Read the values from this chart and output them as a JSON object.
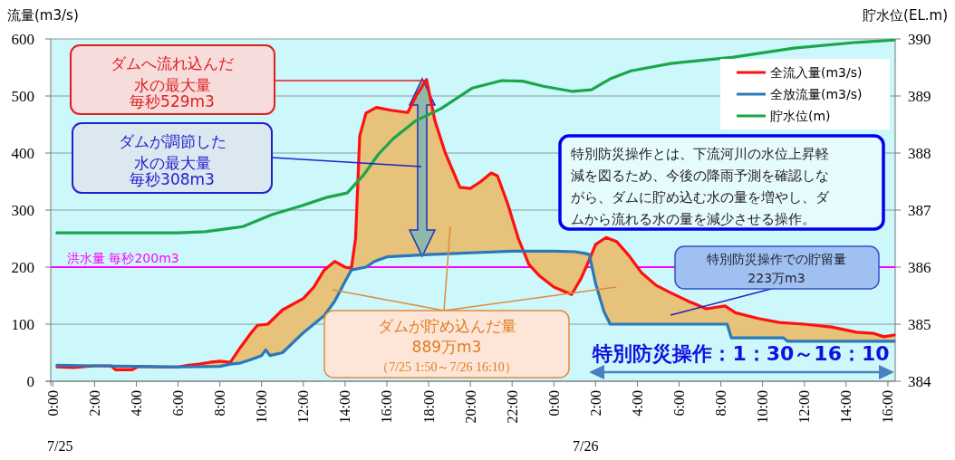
{
  "chart_data": {
    "type": "line",
    "ylabel": "流量(m3/s)",
    "y2label": "貯水位(EL.m)",
    "xlim": [
      "--07-24T23:54",
      "--07-26T16:21"
    ],
    "xticks": [
      {
        "value": "--07-25T00:00",
        "label": "0:00"
      },
      {
        "value": "--07-25T02:00",
        "label": "2:00"
      },
      {
        "value": "--07-25T04:00",
        "label": "4:00"
      },
      {
        "value": "--07-25T06:00",
        "label": "6:00"
      },
      {
        "value": "--07-25T08:00",
        "label": "8:00"
      },
      {
        "value": "--07-25T10:00",
        "label": "10:00"
      },
      {
        "value": "--07-25T12:00",
        "label": "12:00"
      },
      {
        "value": "--07-25T14:00",
        "label": "14:00"
      },
      {
        "value": "--07-25T16:00",
        "label": "16:00"
      },
      {
        "value": "--07-25T18:00",
        "label": "18:00"
      },
      {
        "value": "--07-25T20:00",
        "label": "20:00"
      },
      {
        "value": "--07-25T22:00",
        "label": "22:00"
      },
      {
        "value": "--07-26T00:00",
        "label": "0:00"
      },
      {
        "value": "--07-26T02:00",
        "label": "2:00"
      },
      {
        "value": "--07-26T04:00",
        "label": "4:00"
      },
      {
        "value": "--07-26T06:00",
        "label": "6:00"
      },
      {
        "value": "--07-26T08:00",
        "label": "8:00"
      },
      {
        "value": "--07-26T10:00",
        "label": "10:00"
      },
      {
        "value": "--07-26T12:00",
        "label": "12:00"
      },
      {
        "value": "--07-26T14:00",
        "label": "14:00"
      },
      {
        "value": "--07-26T16:00",
        "label": "16:00"
      }
    ],
    "ylim": [
      0,
      600
    ],
    "yticks": [
      0,
      100,
      200,
      300,
      400,
      500,
      600
    ],
    "y2lim": [
      384,
      390
    ],
    "y2ticks": [
      384,
      385,
      386,
      387,
      388,
      389,
      390
    ],
    "grid": "y",
    "legend": "top right",
    "marker": "none",
    "line_style": "solid",
    "series": [
      {
        "name": "全流入量(m3/s)",
        "color": "#ff1010",
        "x": [
          "--07-25T00:12",
          "--07-25T01:00",
          "--07-25T02:00",
          "--07-25T02:48",
          "--07-25T03:00",
          "--07-25T03:48",
          "--07-25T04:06",
          "--07-25T05:00",
          "--07-25T06:00",
          "--07-25T06:30",
          "--07-25T07:00",
          "--07-25T07:30",
          "--07-25T08:00",
          "--07-25T08:30",
          "--07-25T09:00",
          "--07-25T09:30",
          "--07-25T09:48",
          "--07-25T10:18",
          "--07-25T11:00",
          "--07-25T12:00",
          "--07-25T12:30",
          "--07-25T13:00",
          "--07-25T13:30",
          "--07-25T14:00",
          "--07-25T14:18",
          "--07-25T14:30",
          "--07-25T14:42",
          "--07-25T15:00",
          "--07-25T15:30",
          "--07-25T16:12",
          "--07-25T17:00",
          "--07-25T17:24",
          "--07-25T17:54",
          "--07-25T18:18",
          "--07-25T18:48",
          "--07-25T19:30",
          "--07-25T20:00",
          "--07-25T20:30",
          "--07-25T21:00",
          "--07-25T21:18",
          "--07-25T21:48",
          "--07-25T22:18",
          "--07-25T22:48",
          "--07-25T23:18",
          "--07-26T00:00",
          "--07-26T00:51",
          "--07-26T01:18",
          "--07-26T01:42",
          "--07-26T02:00",
          "--07-26T02:30",
          "--07-26T03:00",
          "--07-26T03:36",
          "--07-26T04:12",
          "--07-26T04:54",
          "--07-26T05:36",
          "--07-26T06:24",
          "--07-26T07:18",
          "--07-26T08:12",
          "--07-26T08:42",
          "--07-26T09:48",
          "--07-26T10:48",
          "--07-26T12:00",
          "--07-26T13:18",
          "--07-26T14:30",
          "--07-26T15:18",
          "--07-26T15:48",
          "--07-26T16:18"
        ],
        "values": [
          25,
          24,
          27,
          27,
          20,
          20,
          26,
          25,
          25,
          28,
          30,
          33,
          35,
          33,
          60,
          85,
          98,
          100,
          125,
          145,
          165,
          195,
          210,
          200,
          198,
          250,
          430,
          470,
          480,
          475,
          471,
          500,
          529,
          457,
          400,
          340,
          338,
          350,
          365,
          360,
          310,
          250,
          205,
          185,
          165,
          152,
          180,
          213,
          240,
          252,
          245,
          220,
          190,
          168,
          155,
          141,
          127,
          132,
          120,
          110,
          103,
          100,
          95,
          86,
          84,
          78,
          81
        ]
      },
      {
        "name": "全放流量(m3/s)",
        "color": "#2a78b8",
        "x": [
          "--07-25T00:12",
          "--07-25T02:00",
          "--07-25T04:00",
          "--07-25T06:00",
          "--07-25T08:00",
          "--07-25T08:30",
          "--07-25T09:00",
          "--07-25T09:30",
          "--07-25T10:00",
          "--07-25T10:12",
          "--07-25T10:24",
          "--07-25T11:00",
          "--07-25T12:00",
          "--07-25T13:00",
          "--07-25T13:30",
          "--07-25T14:00",
          "--07-25T14:18",
          "--07-25T15:00",
          "--07-25T15:24",
          "--07-25T16:00",
          "--07-25T18:00",
          "--07-25T20:00",
          "--07-25T22:00",
          "--07-26T00:00",
          "--07-26T01:00",
          "--07-26T01:30",
          "--07-26T01:42",
          "--07-26T02:00",
          "--07-26T02:24",
          "--07-26T02:42",
          "--07-26T08:18",
          "--07-26T08:30",
          "--07-26T11:00",
          "--07-26T11:12",
          "--07-26T16:18"
        ],
        "values": [
          28,
          27,
          26,
          25,
          26,
          30,
          32,
          38,
          45,
          55,
          45,
          50,
          85,
          115,
          140,
          175,
          195,
          200,
          210,
          218,
          222,
          225,
          228,
          228,
          227,
          224,
          222,
          171,
          122,
          100,
          100,
          76,
          76,
          70,
          70
        ]
      },
      {
        "name": "貯水位(m)",
        "color": "#1aa64a",
        "axis": "y2",
        "x": [
          "--07-25T00:12",
          "--07-25T06:00",
          "--07-25T07:18",
          "--07-25T08:30",
          "--07-25T09:06",
          "--07-25T10:30",
          "--07-25T11:57",
          "--07-25T13:06",
          "--07-25T14:06",
          "--07-25T14:54",
          "--07-25T15:36",
          "--07-25T16:18",
          "--07-25T17:24",
          "--07-25T18:36",
          "--07-25T20:06",
          "--07-25T21:30",
          "--07-25T22:30",
          "--07-25T23:30",
          "--07-26T00:54",
          "--07-26T01:48",
          "--07-26T02:42",
          "--07-26T03:42",
          "--07-26T05:36",
          "--07-26T08:36",
          "--07-26T11:30",
          "--07-26T14:30",
          "--07-26T16:18"
        ],
        "values": [
          386.6,
          386.6,
          386.62,
          386.68,
          386.71,
          386.92,
          387.08,
          387.22,
          387.3,
          387.62,
          387.98,
          388.25,
          388.57,
          388.78,
          389.14,
          389.27,
          389.26,
          389.17,
          389.08,
          389.11,
          389.3,
          389.44,
          389.57,
          389.68,
          389.84,
          389.94,
          389.98
        ]
      }
    ],
    "ref_lines": [
      {
        "axis": "y",
        "value": 200,
        "label": "洪水量 毎秒200m3",
        "color": "#ff00ff"
      }
    ],
    "annotations": [
      "ダムへ流れ込んだ水の最大量",
      "毎秒529m3",
      "ダムが調節した水の最大量",
      "毎秒308m3",
      "ダムが貯め込んだ量",
      "889万m3",
      "（7/25 1:50～7/26 16:10）",
      "特別防災操作とは、下流河川の水位上昇軽減を図るため、今後の降雨予測を確認しながら、ダムに貯め込む水の量を増やし、ダムから流れる水の量を減少させる操作。",
      "特別防災操作での貯留量",
      "223万m3",
      "特別防災操作：1：30～16：10",
      "7/25",
      "7/26"
    ]
  }
}
